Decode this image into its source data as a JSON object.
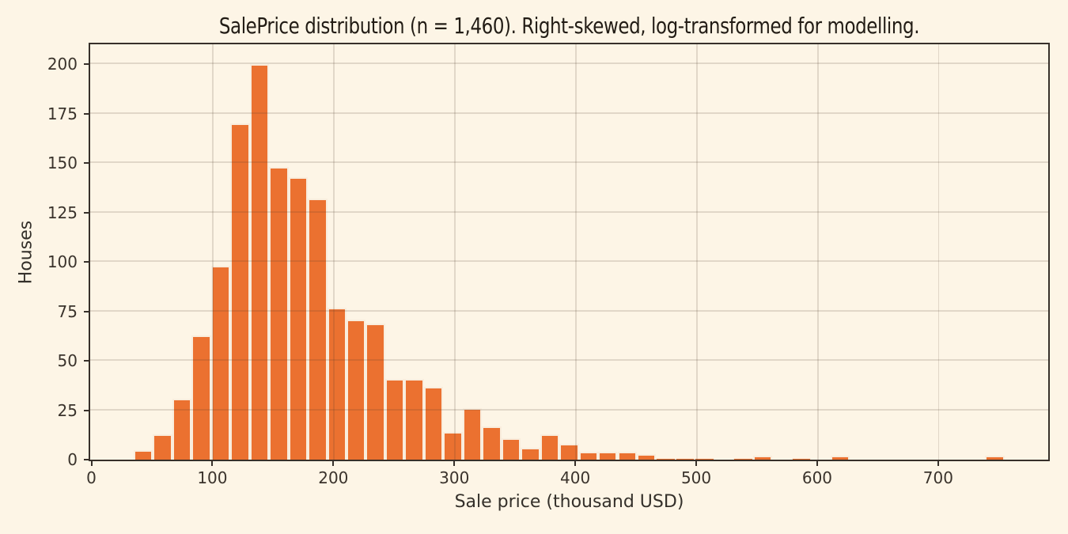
{
  "chart_data": {
    "type": "bar",
    "subtype": "histogram",
    "title": "SalePrice distribution (n = 1,460). Right-skewed, log-transformed for modelling.",
    "xlabel": "Sale price (thousand USD)",
    "ylabel": "Houses",
    "n_total": 1460,
    "bin_start": 34.9,
    "bin_width": 16.0,
    "counts": [
      5,
      13,
      31,
      63,
      98,
      170,
      200,
      148,
      143,
      132,
      77,
      71,
      69,
      41,
      41,
      37,
      14,
      26,
      17,
      11,
      6,
      13,
      8,
      4,
      4,
      4,
      3,
      1,
      1,
      1,
      0,
      1,
      2,
      0,
      1,
      0,
      2,
      0,
      0,
      0,
      0,
      0,
      0,
      0,
      2
    ],
    "x_ticks": [
      0,
      100,
      200,
      300,
      400,
      500,
      600,
      700
    ],
    "y_ticks": [
      0,
      25,
      50,
      75,
      100,
      125,
      150,
      175,
      200
    ],
    "xlim": [
      -1,
      791
    ],
    "ylim": [
      0,
      210
    ],
    "grid": true,
    "legend": null,
    "colors": {
      "bar": "#eb7130",
      "bar_edge": "#f9eddd",
      "background": "#fdf5e6",
      "grid": "#ded5c8",
      "spine": "#37302a",
      "text": "#3a332c"
    }
  }
}
